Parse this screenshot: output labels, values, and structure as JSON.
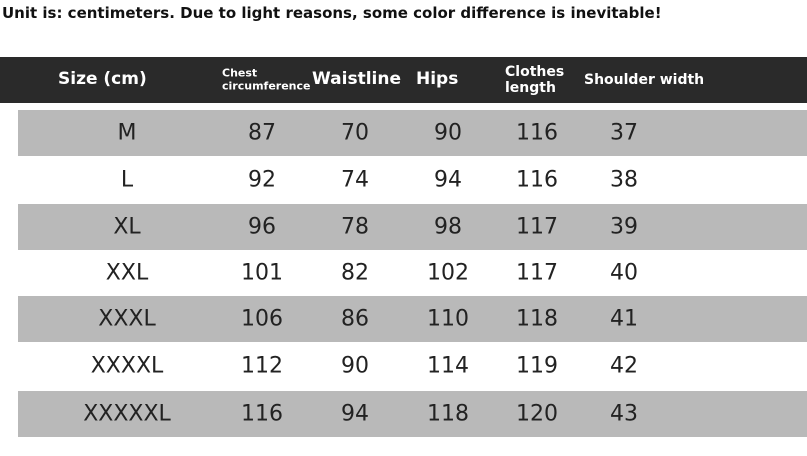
{
  "note": "Unit is: centimeters. Due to light reasons, some color difference is inevitable!",
  "table": {
    "header": [
      "Size (cm)",
      "Chest circumference",
      "Waistline",
      "Hips",
      "Clothes length",
      "Shoulder width"
    ],
    "rows": [
      [
        "M",
        87,
        70,
        90,
        116,
        37
      ],
      [
        "L",
        92,
        74,
        94,
        116,
        38
      ],
      [
        "XL",
        96,
        78,
        98,
        117,
        39
      ],
      [
        "XXL",
        101,
        82,
        102,
        117,
        40
      ],
      [
        "XXXL",
        106,
        86,
        110,
        118,
        41
      ],
      [
        "XXXXL",
        112,
        90,
        114,
        119,
        42
      ],
      [
        "XXXXXL",
        116,
        94,
        118,
        120,
        43
      ]
    ]
  }
}
